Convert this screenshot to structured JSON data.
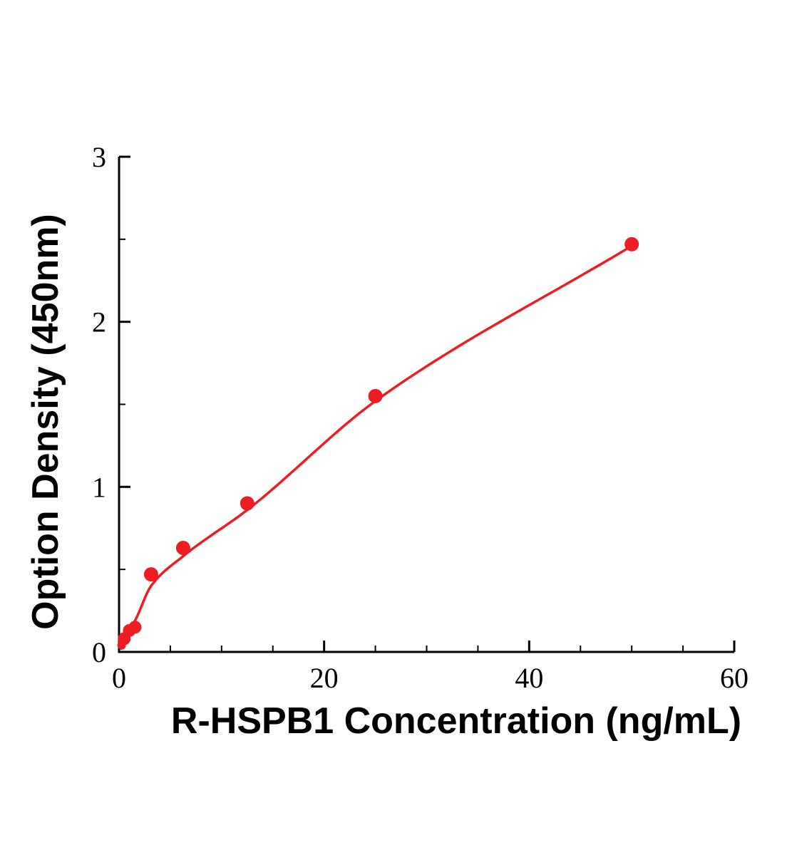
{
  "chart_data": {
    "type": "scatter",
    "title": "",
    "xlabel": "R-HSPB1 Concentration (ng/mL)",
    "ylabel": "Option Density (450nm)",
    "xlim": [
      0,
      60
    ],
    "ylim": [
      0,
      3
    ],
    "grid": false,
    "legend": null,
    "background_color": "#ffffff",
    "axis_color": "#000000",
    "accent_color": "#ee1c23",
    "xticks": {
      "major": [
        0,
        20,
        40,
        60
      ],
      "labels": [
        "0",
        "20",
        "40",
        "60"
      ],
      "minor": [
        5,
        10,
        15,
        25,
        30,
        35,
        45,
        50,
        55
      ]
    },
    "yticks": {
      "major": [
        0,
        1,
        2,
        3
      ],
      "labels": [
        "0",
        "1",
        "2",
        "3"
      ],
      "minor": [
        0.5,
        1.5,
        2.5
      ]
    },
    "series": [
      {
        "name": "standard-points",
        "type": "scatter",
        "color": "#ee1c23",
        "x": [
          0.25,
          0.5,
          1.0,
          1.56,
          3.125,
          6.25,
          12.5,
          25,
          50
        ],
        "y": [
          0.04,
          0.08,
          0.13,
          0.15,
          0.47,
          0.63,
          0.9,
          1.55,
          2.47
        ],
        "marker_radius_px": [
          6,
          9,
          9,
          9,
          10,
          10,
          10,
          10,
          10
        ]
      },
      {
        "name": "fit-curve",
        "type": "line",
        "color": "#ee1c23",
        "x": [
          0.2,
          0.78,
          1.56,
          3.125,
          6.25,
          12.5,
          25,
          50
        ],
        "y": [
          0.02,
          0.11,
          0.19,
          0.4,
          0.58,
          0.86,
          1.52,
          2.46
        ]
      }
    ]
  }
}
